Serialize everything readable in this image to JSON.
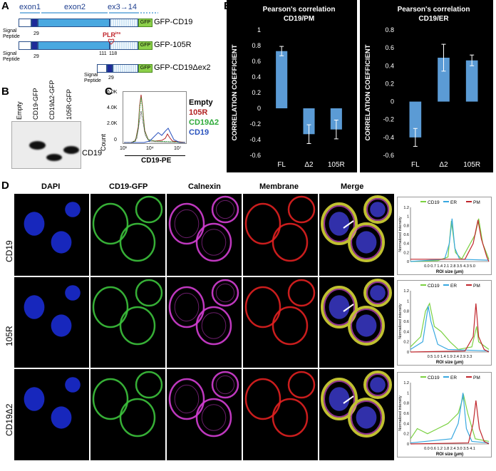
{
  "panel_A": {
    "letter": "A",
    "exon1": "exon1",
    "exon2": "exon2",
    "exon3_14": "ex3→14",
    "signal_peptide": "Signal\nPeptide",
    "constructs": [
      {
        "name": "GFP-CD19",
        "tick": "29"
      },
      {
        "name": "GFP-105R",
        "tick": "29",
        "ticks2": [
          "111",
          "118"
        ],
        "mutation": "PLR"
      },
      {
        "name": "GFP-CD19Δex2",
        "tick": "29"
      }
    ],
    "gfp": "GFP",
    "mutation_superscript": "ins"
  },
  "panel_B": {
    "letter": "B",
    "lanes": [
      "Empty",
      "CD19-GFP",
      "CD19Δ2-GFP",
      "105R-GFP"
    ],
    "band_label": "CD19"
  },
  "panel_C": {
    "letter": "C",
    "xlabel": "CD19-PE",
    "ylabel": "Count",
    "yticks": [
      "6.0K",
      "4.0K",
      "2.0K",
      "0"
    ],
    "xticks": [
      "10¹",
      "10⁴",
      "10⁷"
    ],
    "legend": [
      {
        "name": "Empty",
        "color": "#000000"
      },
      {
        "name": "105R",
        "color": "#b22222"
      },
      {
        "name": "CD19Δ2",
        "color": "#2eaa3a"
      },
      {
        "name": "CD19",
        "color": "#2a52be"
      }
    ]
  },
  "panel_E": {
    "letter": "E"
  },
  "chart_data": [
    {
      "type": "bar",
      "title": "Pearson's correlation\nCD19/PM",
      "ylabel": "CORRELATION COEFFICIENT",
      "categories": [
        "FL",
        "Δ2",
        "105R"
      ],
      "values": [
        0.73,
        -0.33,
        -0.27
      ],
      "errors": [
        0.06,
        0.12,
        0.12
      ],
      "ylim": [
        -0.6,
        1.0
      ],
      "yticks": [
        "1",
        "0.8",
        "0.6",
        "0.4",
        "0.2",
        "0",
        "-0.2",
        "-0.4",
        "-0.6"
      ],
      "bar_color": "#5b9bd5"
    },
    {
      "type": "bar",
      "title": "Pearson's correlation\nCD19/ER",
      "ylabel": "CORRELATION COEFFICIENT",
      "categories": [
        "FL",
        "Δ2",
        "105R"
      ],
      "values": [
        -0.4,
        0.49,
        0.46
      ],
      "errors": [
        0.1,
        0.15,
        0.06
      ],
      "ylim": [
        -0.6,
        0.8
      ],
      "yticks": [
        "0.8",
        "0.6",
        "0.4",
        "0.2",
        "0",
        "-0.2",
        "-0.4",
        "-0.6"
      ],
      "bar_color": "#5b9bd5"
    }
  ],
  "panel_D": {
    "letter": "D",
    "columns": [
      "DAPI",
      "CD19-GFP",
      "Calnexin",
      "Membrane",
      "Merge"
    ],
    "rows": [
      "CD19",
      "105R",
      "CD19Δ2"
    ],
    "line_legend": [
      {
        "name": "CD19",
        "color": "#7bd142"
      },
      {
        "name": "ER",
        "color": "#38a8e0"
      },
      {
        "name": "PM",
        "color": "#c0262c"
      }
    ],
    "profile_ylabel": "Normalized intensity",
    "profile_xlabel": "ROI size (μm)",
    "profile_yticks": [
      "1.2",
      "1",
      "0.8",
      "0.6",
      "0.4",
      "0.2",
      "0"
    ],
    "profile_xticks": [
      "0.0 0.7 1.4 2.1 2.8 3.5 4.3 5.0",
      "0.5 1.0 1.4 1.9 2.4 2.9 3.3",
      "0.0 0.6 1.2 1.8 2.4 3.0 3.5 4.1"
    ]
  }
}
